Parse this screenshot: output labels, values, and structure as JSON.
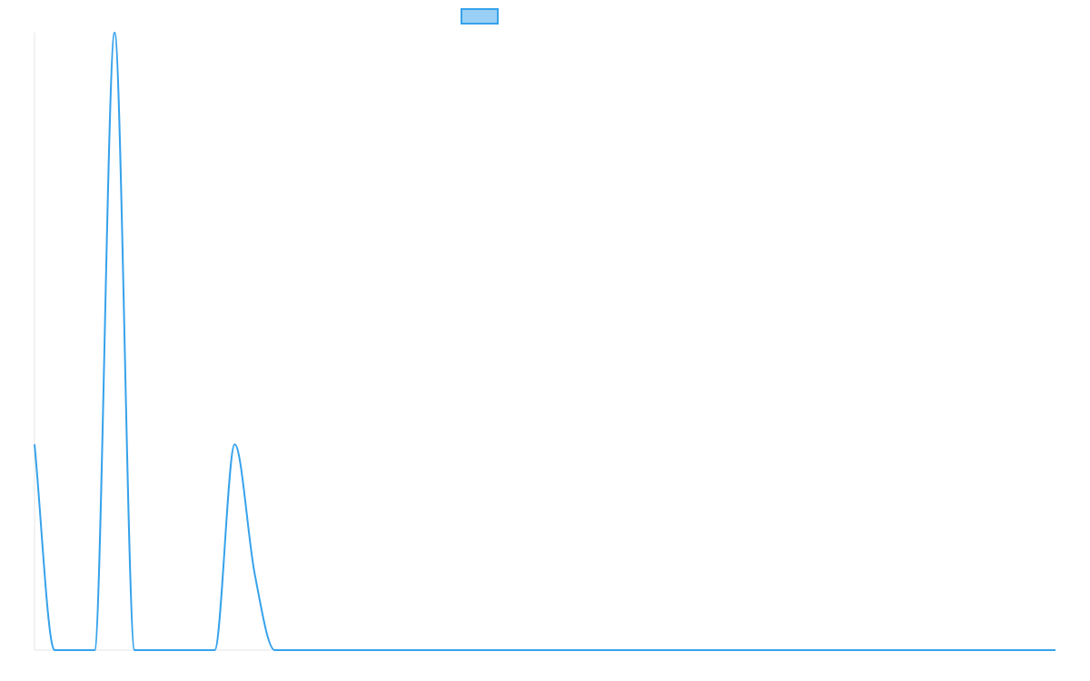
{
  "chart_data": {
    "type": "line",
    "title": "",
    "xlabel": "",
    "ylabel": "",
    "x": [
      0,
      1,
      2,
      3,
      4,
      5,
      6,
      7,
      8,
      9,
      10,
      11,
      12,
      13,
      14,
      15,
      16,
      17,
      18,
      19,
      20,
      21,
      22,
      23,
      24,
      25,
      26,
      27,
      28,
      29,
      30,
      31,
      32,
      33,
      34,
      35,
      36,
      37,
      38,
      39,
      40,
      41,
      42,
      43,
      44,
      45,
      46,
      47,
      48,
      49,
      51
    ],
    "series": [
      {
        "name": "",
        "values": [
          1,
          0,
          0,
          0,
          3,
          0,
          0,
          0,
          0,
          0,
          1,
          0.37,
          0,
          0,
          0,
          0,
          0,
          0,
          0,
          0,
          0,
          0,
          0,
          0,
          0,
          0,
          0,
          0,
          0,
          0,
          0,
          0,
          0,
          0,
          0,
          0,
          0,
          0,
          0,
          0,
          0,
          0,
          0,
          0,
          0,
          0,
          0,
          0,
          0,
          0,
          0
        ],
        "color": "#36a2eb",
        "fill": "#9ad0f5"
      }
    ],
    "xlim": [
      0,
      51
    ],
    "ylim": [
      0,
      3
    ],
    "legend": "top",
    "grid": false,
    "ticks_visible": false
  }
}
